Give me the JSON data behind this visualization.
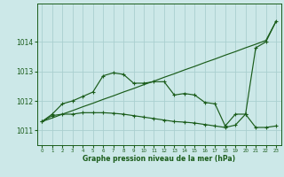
{
  "xlabel": "Graphe pression niveau de la mer (hPa)",
  "background_color": "#cce8e8",
  "grid_color": "#aacfcf",
  "line_color": "#1a5c1a",
  "ylim": [
    1010.5,
    1015.3
  ],
  "xlim": [
    -0.5,
    23.5
  ],
  "yticks": [
    1011,
    1012,
    1013,
    1014
  ],
  "xticks": [
    0,
    1,
    2,
    3,
    4,
    5,
    6,
    7,
    8,
    9,
    10,
    11,
    12,
    13,
    14,
    15,
    16,
    17,
    18,
    19,
    20,
    21,
    22,
    23
  ],
  "line1_x": [
    0,
    1,
    2,
    3,
    4,
    5,
    6,
    7,
    8,
    9,
    10,
    11,
    12,
    13,
    14,
    15,
    16,
    17,
    18,
    19,
    20,
    21,
    22,
    23
  ],
  "line1_y": [
    1011.3,
    1011.42,
    1011.55,
    1011.67,
    1011.8,
    1011.92,
    1012.05,
    1012.17,
    1012.3,
    1012.42,
    1012.55,
    1012.67,
    1012.8,
    1012.92,
    1013.05,
    1013.17,
    1013.3,
    1013.42,
    1013.55,
    1013.67,
    1013.8,
    1013.92,
    1014.05,
    1014.7
  ],
  "line2_x": [
    0,
    1,
    2,
    3,
    4,
    5,
    6,
    7,
    8,
    9,
    10,
    11,
    12,
    13,
    14,
    15,
    16,
    17,
    18,
    19,
    20,
    21,
    22,
    23
  ],
  "line2_y": [
    1011.3,
    1011.55,
    1011.9,
    1012.0,
    1012.15,
    1012.3,
    1012.85,
    1012.95,
    1012.9,
    1012.6,
    1012.6,
    1012.65,
    1012.65,
    1012.2,
    1012.25,
    1012.2,
    1011.95,
    1011.9,
    1011.15,
    1011.55,
    1011.55,
    1013.8,
    1014.0,
    1014.7
  ],
  "line3_x": [
    0,
    1,
    2,
    3,
    4,
    5,
    6,
    7,
    8,
    9,
    10,
    11,
    12,
    13,
    14,
    15,
    16,
    17,
    18,
    19,
    20,
    21,
    22,
    23
  ],
  "line3_y": [
    1011.3,
    1011.5,
    1011.55,
    1011.55,
    1011.6,
    1011.6,
    1011.6,
    1011.58,
    1011.55,
    1011.5,
    1011.45,
    1011.4,
    1011.35,
    1011.3,
    1011.28,
    1011.25,
    1011.2,
    1011.15,
    1011.1,
    1011.18,
    1011.55,
    1011.1,
    1011.1,
    1011.15
  ]
}
